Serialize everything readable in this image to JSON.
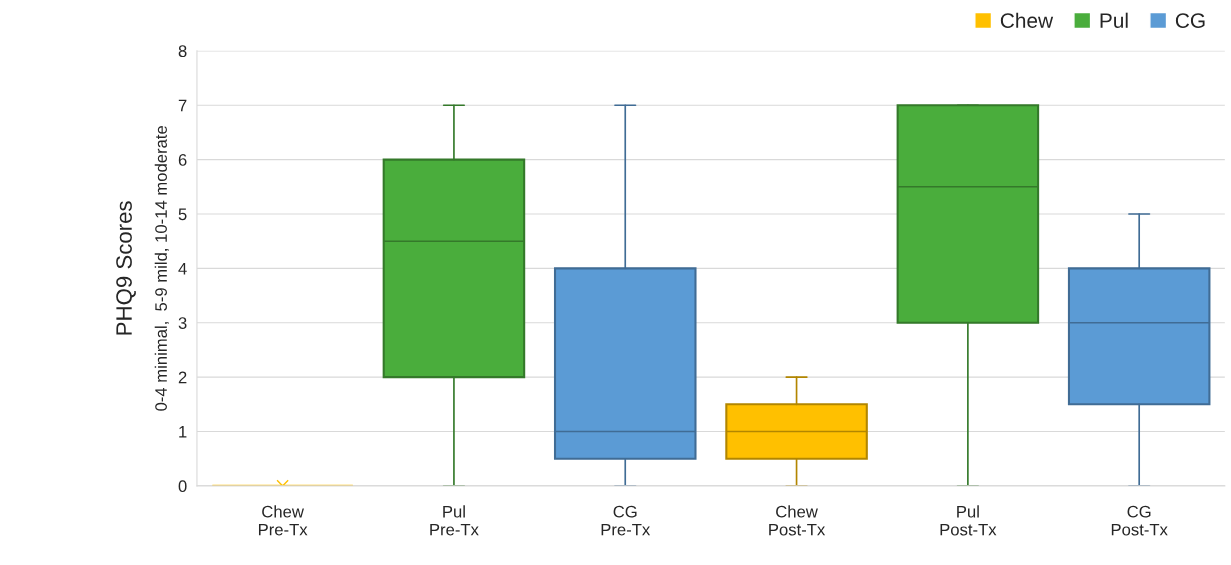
{
  "chart_data": {
    "type": "box",
    "ylabel": "PHQ9 Scores",
    "annotations": [
      "0-4 minimal,  5-9 mild, 10-14 moderate"
    ],
    "categories": [
      "Chew\nPre-Tx",
      "Pul\nPre-Tx",
      "CG\nPre-Tx",
      "Chew\nPost-Tx",
      "Pul\nPost-Tx",
      "CG\nPost-Tx"
    ],
    "series": [
      {
        "name": "Chew",
        "color": "#ffc000",
        "boxes": [
          {
            "low": 0,
            "q1": 0,
            "median": 0,
            "q3": 0,
            "high": 0,
            "mean": 0
          },
          null,
          null,
          {
            "low": 0,
            "q1": 0.5,
            "median": 1,
            "q3": 1.5,
            "high": 2
          },
          null,
          null
        ]
      },
      {
        "name": "Pul",
        "color": "#4aad3c",
        "boxes": [
          null,
          {
            "low": 0,
            "q1": 2,
            "median": 4.5,
            "q3": 6,
            "high": 7
          },
          null,
          null,
          {
            "low": 0,
            "q1": 3,
            "median": 5.5,
            "q3": 7,
            "high": 7
          },
          null
        ]
      },
      {
        "name": "CG",
        "color": "#5b9bd5",
        "boxes": [
          null,
          null,
          {
            "low": 0,
            "q1": 0.5,
            "median": 1,
            "q3": 4,
            "high": 7
          },
          null,
          null,
          {
            "low": 0,
            "q1": 1.5,
            "median": 3,
            "q3": 4,
            "high": 5
          }
        ]
      }
    ],
    "ylim": [
      0,
      8
    ],
    "yticks": [
      0,
      1,
      2,
      3,
      4,
      5,
      6,
      7,
      8
    ],
    "grid": "y",
    "legend": "top right"
  }
}
